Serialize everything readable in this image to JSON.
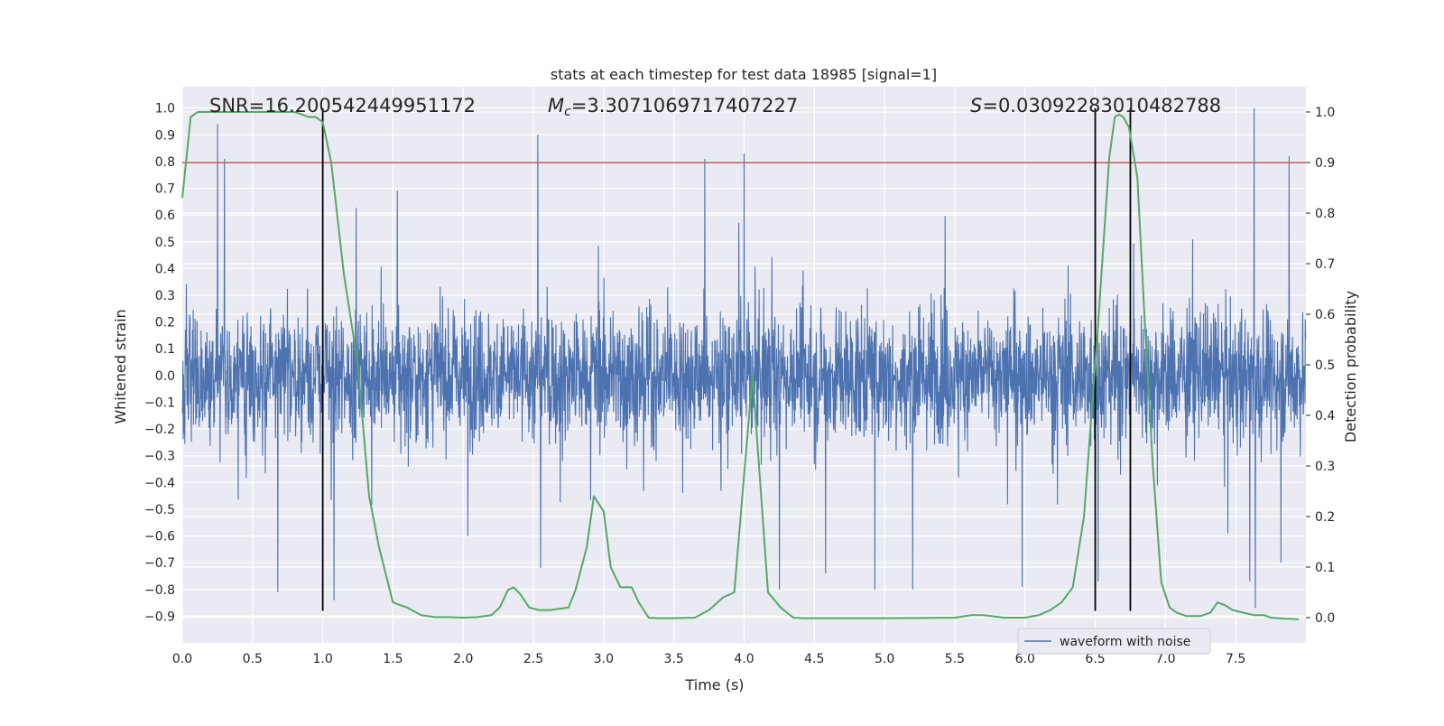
{
  "chart_data": {
    "type": "line",
    "title": "stats at each timestep for test data 18985 [signal=1]",
    "xlabel": "Time (s)",
    "ylabel_left": "Whitened strain",
    "ylabel_right": "Detection probability",
    "xlim": [
      0.0,
      8.0
    ],
    "ylim_left": [
      -1.0,
      1.08
    ],
    "ylim_right": [
      -0.05,
      1.05
    ],
    "x_ticks": [
      0.0,
      0.5,
      1.0,
      1.5,
      2.0,
      2.5,
      3.0,
      3.5,
      4.0,
      4.5,
      5.0,
      5.5,
      6.0,
      6.5,
      7.0,
      7.5
    ],
    "x_tick_labels": [
      "0.0",
      "0.5",
      "1.0",
      "1.5",
      "2.0",
      "2.5",
      "3.0",
      "3.5",
      "4.0",
      "4.5",
      "5.0",
      "5.5",
      "6.0",
      "6.5",
      "7.0",
      "7.5"
    ],
    "y_left_ticks": [
      1.0,
      0.9,
      0.8,
      0.7,
      0.6,
      0.5,
      0.4,
      0.3,
      0.2,
      0.1,
      0.0,
      -0.1,
      -0.2,
      -0.3,
      -0.4,
      -0.5,
      -0.6,
      -0.7,
      -0.8,
      -0.9
    ],
    "y_left_tick_labels": [
      "1.0",
      "0.9",
      "0.8",
      "0.7",
      "0.6",
      "0.5",
      "0.4",
      "0.3",
      "0.2",
      "0.1",
      "0.0",
      "−0.1",
      "−0.2",
      "−0.3",
      "−0.4",
      "−0.5",
      "−0.6",
      "−0.7",
      "−0.8",
      "−0.9"
    ],
    "y_right_ticks": [
      1.0,
      0.9,
      0.8,
      0.7,
      0.6,
      0.5,
      0.4,
      0.3,
      0.2,
      0.1,
      0.0
    ],
    "y_right_tick_labels": [
      "1.0",
      "0.9",
      "0.8",
      "0.7",
      "0.6",
      "0.5",
      "0.4",
      "0.3",
      "0.2",
      "0.1",
      "0.0"
    ],
    "grid": true,
    "annotations": {
      "snr": "SNR=16.200542449951172",
      "mc_symbol": "M",
      "mc_sub": "c",
      "mc_value": "=3.3071069717407227",
      "s_symbol": "S",
      "s_value": "=0.03092283010482788"
    },
    "threshold": {
      "value_right": 0.9,
      "color": "#c44e52"
    },
    "vertical_markers_x": [
      1.0,
      6.5,
      6.75
    ],
    "vertical_marker_range_left": [
      -0.88,
      1.0
    ],
    "legend": {
      "label": "waveform with noise",
      "placement": "lower-right"
    },
    "series": [
      {
        "name": "waveform with noise",
        "axis": "left",
        "color": "#4c72b0",
        "description": "whitened strain noise sampled over 0-8 s; envelope approx +/-0.45 with spikes",
        "spikes": [
          {
            "x": 0.25,
            "y": 0.94
          },
          {
            "x": 0.3,
            "y": 0.81
          },
          {
            "x": 2.53,
            "y": 0.9
          },
          {
            "x": 2.55,
            "y": -0.72
          },
          {
            "x": 1.08,
            "y": -0.84
          },
          {
            "x": 0.68,
            "y": -0.81
          },
          {
            "x": 4.0,
            "y": 0.83
          },
          {
            "x": 3.72,
            "y": 0.81
          },
          {
            "x": 4.25,
            "y": -0.8
          },
          {
            "x": 4.58,
            "y": -0.74
          },
          {
            "x": 4.93,
            "y": -0.8
          },
          {
            "x": 5.2,
            "y": -0.8
          },
          {
            "x": 5.98,
            "y": -0.79
          },
          {
            "x": 6.52,
            "y": -0.77
          },
          {
            "x": 7.63,
            "y": 1.0
          },
          {
            "x": 7.64,
            "y": -0.87
          },
          {
            "x": 7.88,
            "y": 0.82
          },
          {
            "x": 7.6,
            "y": -0.77
          }
        ]
      },
      {
        "name": "detection probability",
        "axis": "right",
        "color": "#55a868",
        "x": [
          0.0,
          0.06,
          0.11,
          0.2,
          0.5,
          0.8,
          0.9,
          0.95,
          1.0,
          1.06,
          1.15,
          1.25,
          1.33,
          1.4,
          1.5,
          1.6,
          1.7,
          1.8,
          1.9,
          2.0,
          2.1,
          2.2,
          2.26,
          2.32,
          2.36,
          2.41,
          2.47,
          2.54,
          2.62,
          2.75,
          2.8,
          2.88,
          2.93,
          3.0,
          3.05,
          3.12,
          3.2,
          3.25,
          3.32,
          3.38,
          3.5,
          3.65,
          3.75,
          3.85,
          3.93,
          4.06,
          4.17,
          4.26,
          4.35,
          4.42,
          4.5,
          5.0,
          5.5,
          5.62,
          5.7,
          5.85,
          6.0,
          6.1,
          6.18,
          6.26,
          6.34,
          6.42,
          6.52,
          6.6,
          6.64,
          6.67,
          6.7,
          6.74,
          6.8,
          6.85,
          6.91,
          6.97,
          7.03,
          7.08,
          7.15,
          7.25,
          7.32,
          7.37,
          7.42,
          7.48,
          7.55,
          7.63,
          7.7,
          7.75,
          7.85,
          7.95
        ],
        "values": [
          0.83,
          0.99,
          1.0,
          1.0,
          1.0,
          1.0,
          0.99,
          0.99,
          0.98,
          0.9,
          0.68,
          0.5,
          0.24,
          0.14,
          0.03,
          0.02,
          0.005,
          0.001,
          0.001,
          0.0,
          0.001,
          0.005,
          0.02,
          0.055,
          0.06,
          0.045,
          0.02,
          0.015,
          0.015,
          0.02,
          0.055,
          0.14,
          0.24,
          0.21,
          0.1,
          0.06,
          0.06,
          0.03,
          0.0,
          -0.001,
          -0.001,
          0.0,
          0.015,
          0.04,
          0.05,
          0.48,
          0.05,
          0.02,
          0.0,
          -0.001,
          -0.001,
          -0.001,
          0.0,
          0.005,
          0.005,
          0.0,
          0.0,
          0.005,
          0.015,
          0.03,
          0.06,
          0.2,
          0.58,
          0.91,
          0.99,
          0.995,
          0.99,
          0.97,
          0.87,
          0.6,
          0.3,
          0.07,
          0.02,
          0.01,
          0.003,
          0.003,
          0.01,
          0.03,
          0.025,
          0.015,
          0.01,
          0.005,
          0.005,
          0.0,
          -0.002,
          -0.003
        ]
      }
    ]
  }
}
